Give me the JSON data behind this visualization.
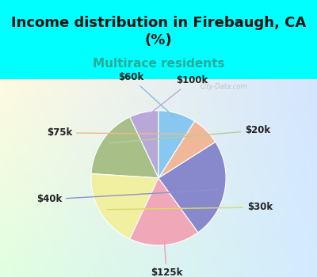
{
  "title": "Income distribution in Firebaugh, CA\n(%)",
  "subtitle": "Multirace residents",
  "labels": [
    "$100k",
    "$20k",
    "$30k",
    "$125k",
    "$40k",
    "$75k",
    "$60k"
  ],
  "sizes": [
    7,
    17,
    19,
    17,
    24,
    7,
    9
  ],
  "colors": [
    "#b8a8d8",
    "#a8c088",
    "#f0f0a0",
    "#f0a8b8",
    "#8888cc",
    "#f0b898",
    "#88c8f0"
  ],
  "startangle": 90,
  "bg_cyan": "#00ffff",
  "title_color": "#111111",
  "title_fontsize": 13,
  "subtitle_fontsize": 11,
  "subtitle_color": "#2aaa99",
  "label_fontsize": 8.5,
  "watermark": "City-Data.com",
  "label_color": "#222222",
  "line_colors": {
    "$100k": "#a090c0",
    "$20k": "#aabb88",
    "$30k": "#d0d880",
    "$125k": "#e090a0",
    "$40k": "#8888cc",
    "$75k": "#e8a888",
    "$60k": "#88bce0"
  }
}
